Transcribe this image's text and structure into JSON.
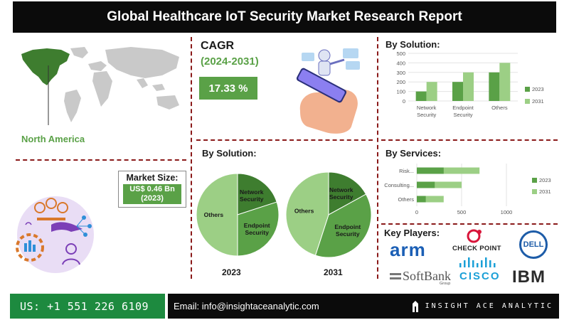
{
  "header": {
    "title": "Global Healthcare IoT Security Market  Research Report"
  },
  "region": {
    "label": "North America"
  },
  "market_size": {
    "label": "Market Size:",
    "value_line1": "US$ 0.46 Bn",
    "value_line2": "(2023)"
  },
  "cagr": {
    "title": "CAGR",
    "period": "(2024-2031)",
    "value": "17.33 %"
  },
  "pies_title": "By Solution:",
  "pie_2023": {
    "year": "2023",
    "labels": [
      "Network Security",
      "Endpoint Security",
      "Others"
    ]
  },
  "pie_2031": {
    "year": "2031",
    "labels": [
      "Network Security",
      "Endpoint Security",
      "Others"
    ]
  },
  "bar_solution": {
    "title": "By Solution:"
  },
  "bar_services": {
    "title": "By Services:"
  },
  "key_players": {
    "title": "Key Players:",
    "logos": [
      "arm",
      "CHECK POINT",
      "DELL",
      "SoftBank",
      "Group",
      "CISCO",
      "IBM"
    ]
  },
  "footer": {
    "phone": "US: +1 551 226 6109",
    "email": "Email: info@insightaceanalytic.com",
    "brand": "INSIGHT ACE ANALYTIC"
  },
  "colors": {
    "dark_green": "#3e7d2f",
    "mid_green": "#5aa147",
    "light_green": "#9ccf85",
    "header_black": "#0b0b0b",
    "footer_green": "#1d8a3f",
    "separator": "#8b1a1a"
  },
  "chart_data": [
    {
      "type": "bar",
      "title": "By Solution:",
      "categories": [
        "Network Security",
        "Endpoint Security",
        "Others"
      ],
      "series": [
        {
          "name": "2023",
          "values": [
            100,
            200,
            300
          ]
        },
        {
          "name": "2031",
          "values": [
            200,
            300,
            400
          ]
        }
      ],
      "ylim": [
        0,
        500
      ],
      "yticks": [
        "0",
        "100",
        "200",
        "300",
        "400",
        "500"
      ],
      "grid": true,
      "legend": "right"
    },
    {
      "type": "bar",
      "orientation": "horizontal",
      "title": "By Services:",
      "categories": [
        "Risk...",
        "Consulting...",
        "Others"
      ],
      "series": [
        {
          "name": "2023",
          "values": [
            300,
            200,
            100
          ]
        },
        {
          "name": "2031",
          "values": [
            700,
            500,
            300
          ]
        }
      ],
      "xlim": [
        0,
        1000
      ],
      "xticks": [
        "0",
        "500",
        "1000"
      ],
      "grid": true,
      "legend": "right"
    },
    {
      "type": "pie",
      "title": "2023",
      "labels": [
        "Network Security",
        "Endpoint Security",
        "Others"
      ],
      "values": [
        20,
        30,
        50
      ]
    },
    {
      "type": "pie",
      "title": "2031",
      "labels": [
        "Network Security",
        "Endpoint Security",
        "Others"
      ],
      "values": [
        17,
        38,
        45
      ]
    }
  ]
}
